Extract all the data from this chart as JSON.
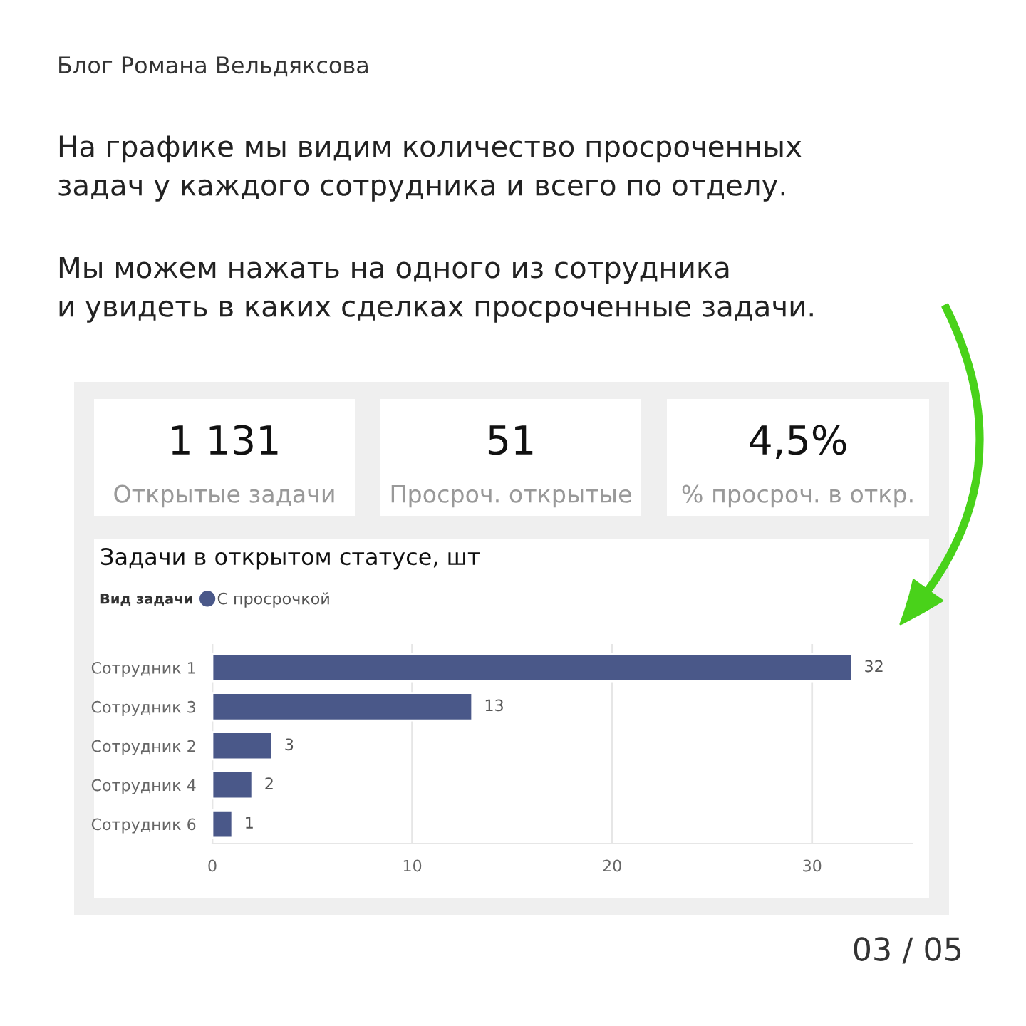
{
  "chart_data": [
    {
      "type": "other",
      "annotations": [
        "Блог Романа Вельдяксова",
        "На графике мы видим количество просроченных\nзадач у каждого сотрудника и всего по отделу.",
        "Мы можем нажать на одного из сотрудника\nи увидеть в каких сделках просроченные задачи.",
        "03 / 05"
      ]
    },
    {
      "type": "other",
      "annotations": [
        "1 131",
        "Открытые задачи"
      ]
    },
    {
      "type": "other",
      "annotations": [
        "51",
        "Просроч. открытые"
      ]
    },
    {
      "type": "other",
      "annotations": [
        "4,5%",
        "% просроч. в откр."
      ]
    },
    {
      "type": "bar",
      "orientation": "horizontal",
      "title": "Задачи в открытом статусе, шт",
      "legend_title": "Вид задачи",
      "legend": "top left",
      "categories": [
        "Сотрудник 1",
        "Сотрудник 3",
        "Сотрудник 2",
        "Сотрудник 4",
        "Сотрудник 6"
      ],
      "series": [
        {
          "name": "С просрочкой",
          "color": "#4a5889",
          "values": [
            32,
            13,
            3,
            2,
            1
          ]
        }
      ],
      "xlim": [
        0,
        35
      ],
      "xticks": [
        0,
        10,
        20,
        30
      ],
      "grid": "x",
      "data_labels": true
    }
  ]
}
